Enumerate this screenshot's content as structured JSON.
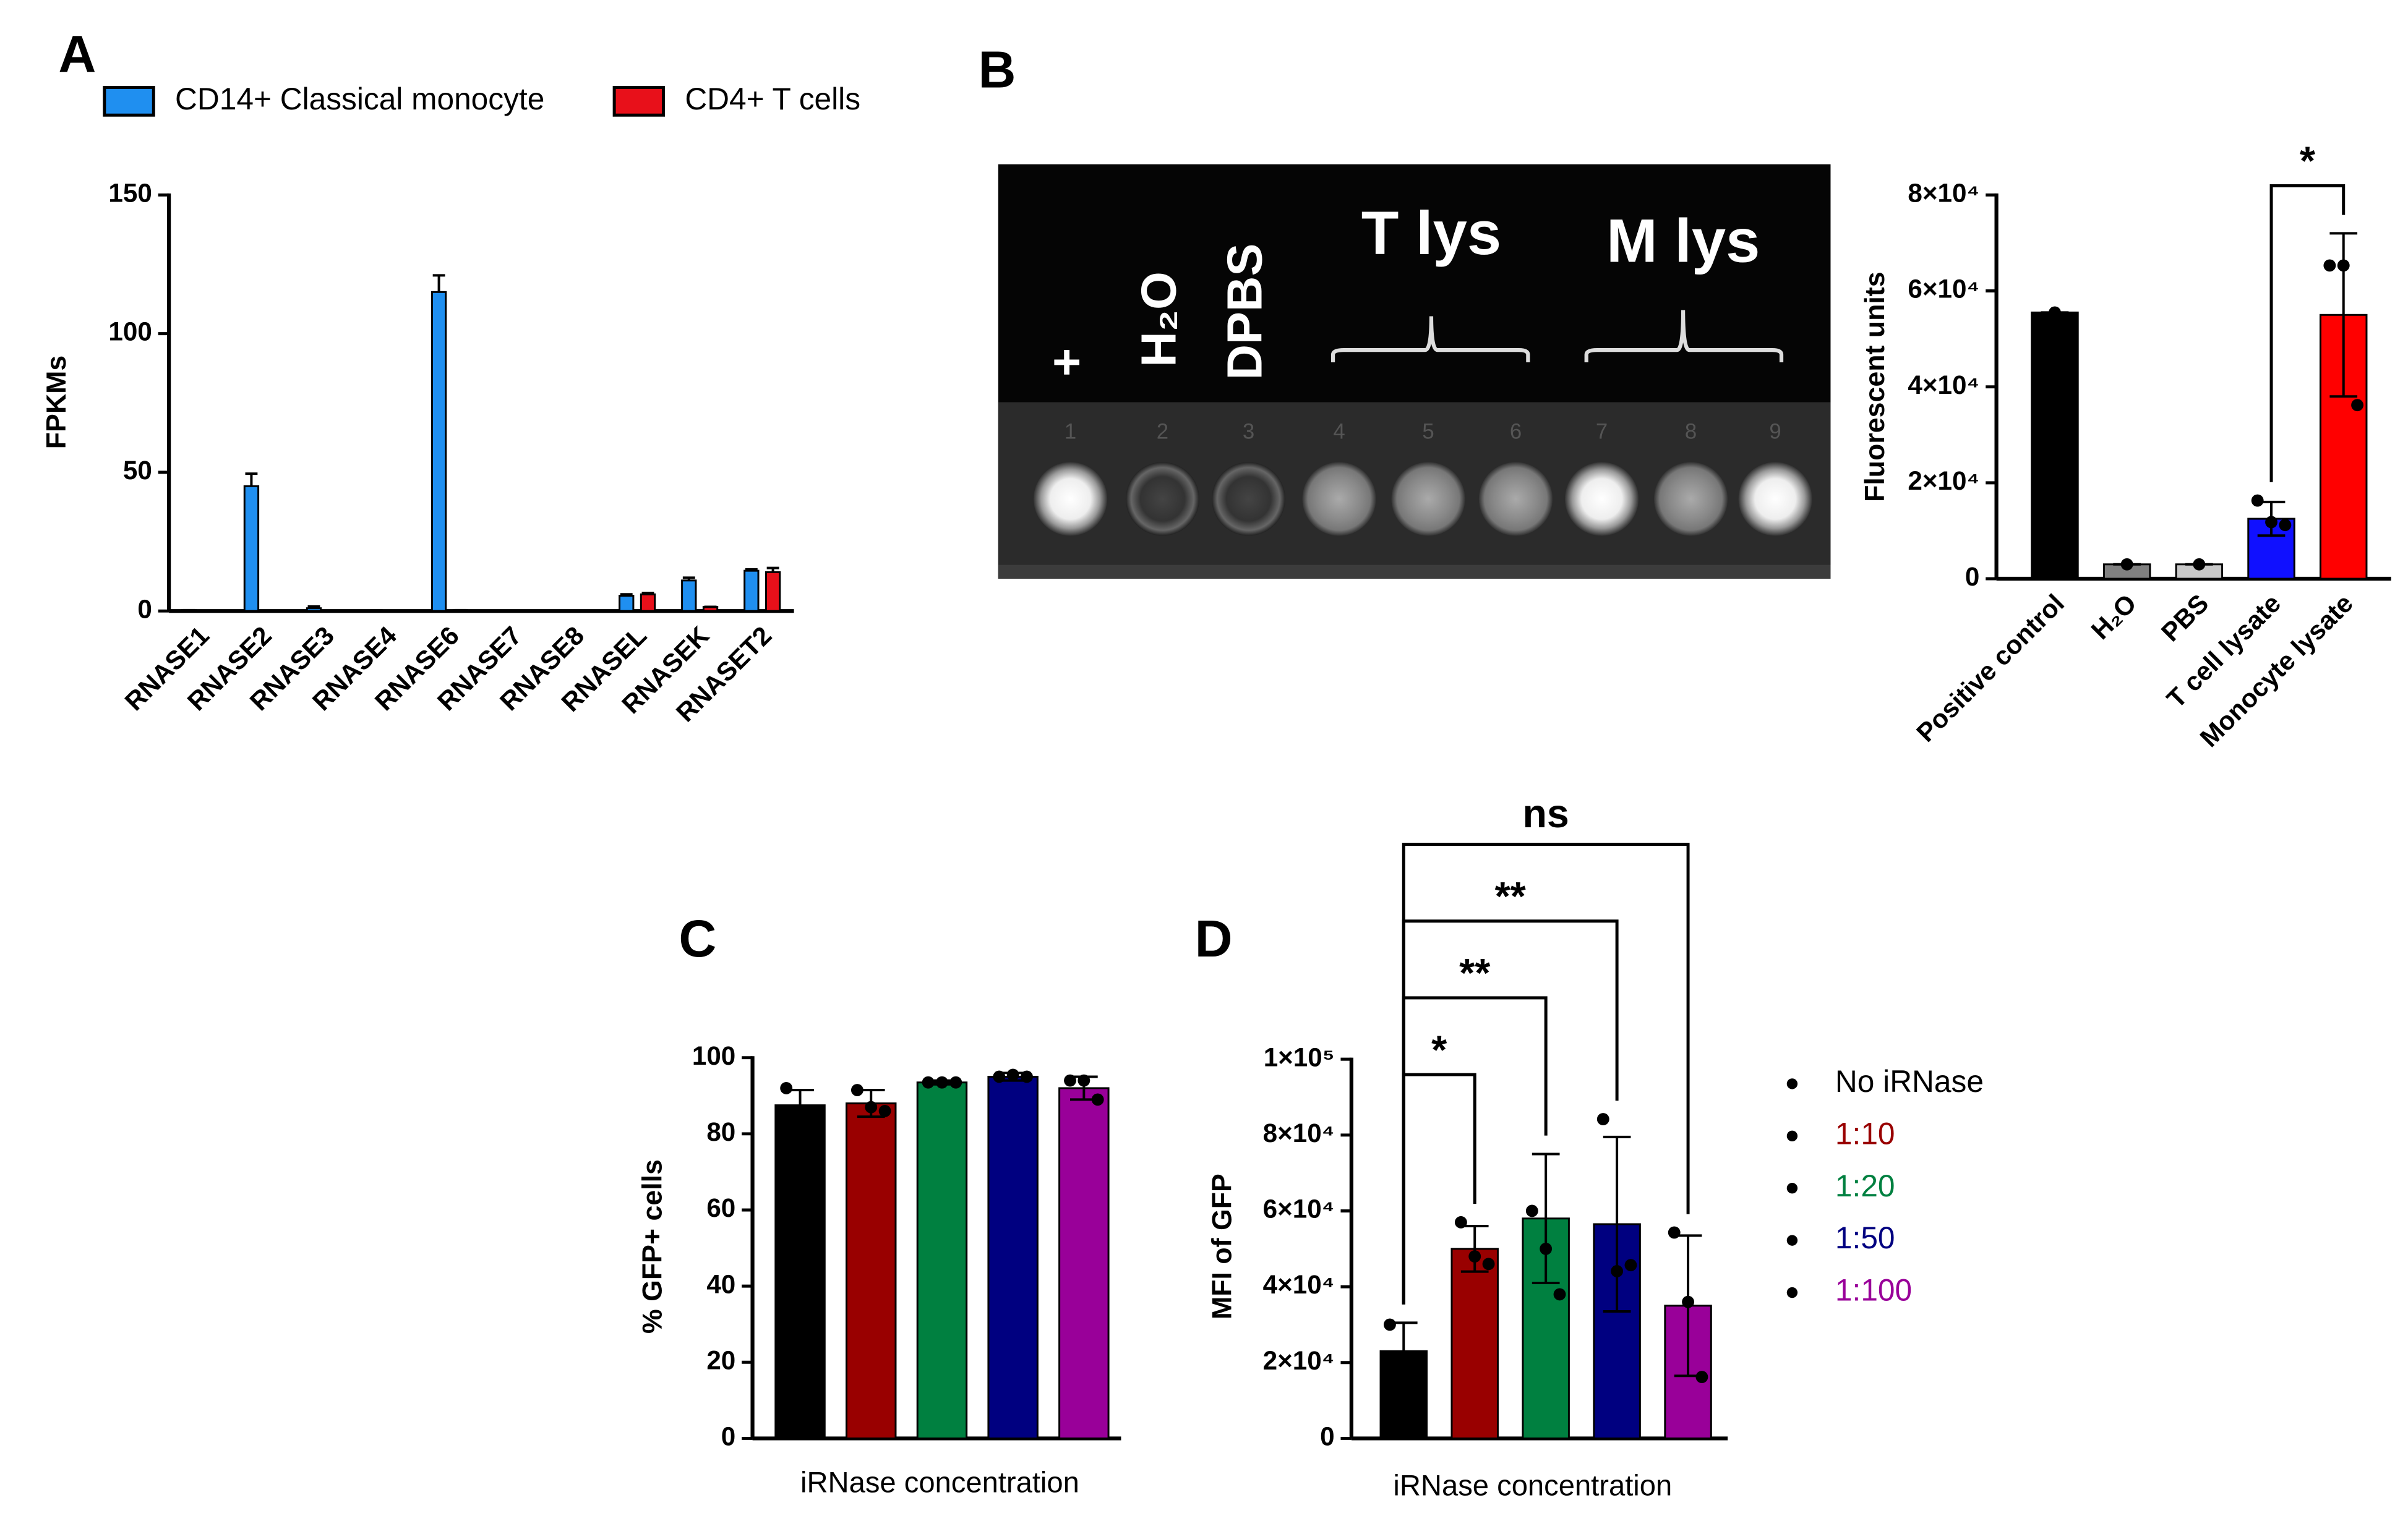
{
  "chart_data": [
    {
      "type": "bar",
      "label": "A",
      "ylabel": "FPKMs",
      "categories": [
        "RNASE1",
        "RNASE2",
        "RNASE3",
        "RNASE4",
        "RNASE6",
        "RNASE7",
        "RNASE8",
        "RNASEL",
        "RNASEK",
        "RNASET2"
      ],
      "series": [
        {
          "name": "CD14+ Classical monocyte",
          "color": "#1f8ff0",
          "values": [
            0.3,
            45,
            1,
            0.2,
            115,
            0,
            0,
            5.5,
            11,
            14.5
          ],
          "errors": [
            0,
            4.5,
            0.6,
            0,
            6,
            0,
            0,
            0.5,
            1,
            0.5
          ]
        },
        {
          "name": "CD4+ T cells",
          "color": "#e8101a",
          "values": [
            0,
            0,
            0,
            0,
            0.3,
            0,
            0,
            6,
            1.5,
            14
          ],
          "errors": [
            0,
            0,
            0,
            0,
            0,
            0,
            0,
            0.5,
            0,
            1.5
          ]
        }
      ],
      "error_bars": "upper",
      "ylim": [
        0,
        150
      ],
      "yticks": [
        0,
        50,
        100,
        150
      ],
      "legend": "top"
    },
    {
      "type": "bar",
      "label": "B",
      "ylabel": "Fluorescent units",
      "categories": [
        "Positive control",
        "H₂O",
        "PBS",
        "T cell lysate",
        "Monocyte lysate"
      ],
      "values": [
        55500,
        3000,
        3000,
        12500,
        55000
      ],
      "errors": [
        0,
        0,
        0,
        3500,
        17000
      ],
      "points": [
        [
          55500
        ],
        [
          3000
        ],
        [
          3000
        ],
        [
          16300,
          11800,
          11200
        ],
        [
          65300,
          65300,
          36200
        ]
      ],
      "colors": [
        "#000000",
        "#808080",
        "#c8c8c8",
        "#1010ff",
        "#ff0000"
      ],
      "error_bars": "both",
      "ylim": [
        0,
        80000
      ],
      "yticks": [
        0,
        {
          "value": 20000,
          "label": "2×10⁴"
        },
        {
          "value": 40000,
          "label": "4×10⁴"
        },
        {
          "value": 60000,
          "label": "6×10⁴"
        },
        {
          "value": 80000,
          "label": "8×10⁴"
        }
      ],
      "significance": [
        {
          "from": 3,
          "to": 4,
          "label": "*"
        }
      ]
    },
    {
      "type": "bar",
      "label": "C",
      "ylabel": "% GFP+ cells",
      "xlabel": "iRNase concentration",
      "categories": [
        null,
        null,
        null,
        null,
        null
      ],
      "values": [
        87.5,
        88,
        93.5,
        95,
        92
      ],
      "errors": [
        4,
        3.5,
        0.5,
        1,
        3
      ],
      "points": [
        [
          92,
          86,
          85
        ],
        [
          91.5,
          87,
          86
        ],
        [
          93.5,
          93.5,
          93.5
        ],
        [
          95,
          95.5,
          95
        ],
        [
          94,
          94,
          89
        ]
      ],
      "colors": [
        "#000000",
        "#990000",
        "#008040",
        "#000080",
        "#990099"
      ],
      "error_bars": "both",
      "ylim": [
        0,
        100
      ],
      "yticks": [
        0,
        20,
        40,
        60,
        80,
        100
      ]
    },
    {
      "type": "bar",
      "label": "D",
      "ylabel": "MFI of GFP",
      "xlabel": "iRNase concentration",
      "categories": [
        null,
        null,
        null,
        null,
        null
      ],
      "legend_entries": [
        "No iRNase",
        "1:10",
        "1:20",
        "1:50",
        "1:100"
      ],
      "values": [
        23000,
        50000,
        58000,
        56500,
        35000
      ],
      "errors": [
        7500,
        6000,
        17000,
        23000,
        18500
      ],
      "points": [
        [
          30000,
          20000,
          19000
        ],
        [
          57000,
          48000,
          46000
        ],
        [
          60000,
          50000,
          38000
        ],
        [
          84200,
          44100,
          45700
        ],
        [
          54300,
          36000,
          16200
        ]
      ],
      "colors": [
        "#000000",
        "#990000",
        "#008040",
        "#000080",
        "#990099"
      ],
      "error_bars": "both",
      "ylim": [
        0,
        100000
      ],
      "yticks": [
        0,
        {
          "value": 20000,
          "label": "2×10⁴"
        },
        {
          "value": 40000,
          "label": "4×10⁴"
        },
        {
          "value": 60000,
          "label": "6×10⁴"
        },
        {
          "value": 80000,
          "label": "8×10⁴"
        },
        {
          "value": 100000,
          "label": "1×10⁵"
        }
      ],
      "significance": [
        {
          "from": 0,
          "to": 1,
          "label": "*"
        },
        {
          "from": 0,
          "to": 2,
          "label": "**"
        },
        {
          "from": 0,
          "to": 3,
          "label": "**"
        },
        {
          "from": 0,
          "to": 4,
          "label": "ns"
        }
      ],
      "legend": "right"
    }
  ],
  "plate_image": {
    "labels": [
      "+",
      "H₂O",
      "DPBS",
      "T lys",
      "M lys"
    ],
    "wells": [
      "1",
      "2",
      "3",
      "4",
      "5",
      "6",
      "7",
      "8",
      "9"
    ]
  }
}
